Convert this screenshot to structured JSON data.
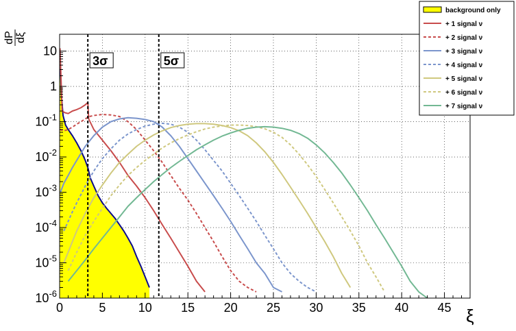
{
  "chart_data": {
    "type": "line",
    "title": "",
    "xlabel": "ξ",
    "ylabel_num": "dP",
    "ylabel_den": "dξ",
    "xlim": [
      0,
      48
    ],
    "ylim": [
      1e-06,
      30
    ],
    "yscale": "log",
    "grid": true,
    "legend_position": "top-right",
    "x_ticks": [
      0,
      5,
      10,
      15,
      20,
      25,
      30,
      35,
      40,
      45
    ],
    "y_ticks": [
      {
        "value": 1e-06,
        "base": "10",
        "exp": "-6"
      },
      {
        "value": 1e-05,
        "base": "10",
        "exp": "-5"
      },
      {
        "value": 0.0001,
        "base": "10",
        "exp": "-4"
      },
      {
        "value": 0.001,
        "base": "10",
        "exp": "-3"
      },
      {
        "value": 0.01,
        "base": "10",
        "exp": "-2"
      },
      {
        "value": 0.1,
        "base": "10",
        "exp": "-1"
      },
      {
        "value": 1,
        "base": "1",
        "exp": ""
      },
      {
        "value": 10,
        "base": "10",
        "exp": ""
      }
    ],
    "thresholds": [
      {
        "label": "3σ",
        "x": 3.3
      },
      {
        "label": "5σ",
        "x": 11.6
      }
    ],
    "series": [
      {
        "name": "background only",
        "color": "#ffff00",
        "style": "fill",
        "x": [
          0.05,
          0.2,
          0.4,
          0.7,
          1.0,
          1.5,
          2.0,
          2.5,
          3.0,
          3.3,
          3.6,
          4.0,
          4.5,
          5.0,
          5.5,
          6.0,
          6.5,
          7.0,
          7.5,
          8.0,
          8.5,
          9.0,
          9.5,
          10.0,
          10.5
        ],
        "y": [
          8,
          0.6,
          0.15,
          0.08,
          0.06,
          0.04,
          0.025,
          0.015,
          0.008,
          0.005,
          0.0025,
          0.0015,
          0.0008,
          0.0005,
          0.00035,
          0.00025,
          0.00018,
          0.00012,
          8e-05,
          5e-05,
          3e-05,
          1.5e-05,
          8e-06,
          4e-06,
          2e-06
        ]
      },
      {
        "name": "+ 1 signal ν",
        "color": "#c84b4b",
        "style": "solid",
        "x": [
          0.05,
          0.3,
          0.6,
          1.0,
          1.5,
          2.0,
          2.5,
          3.0,
          3.3,
          3.4,
          4.0,
          5.0,
          6.0,
          7.0,
          8.0,
          9.0,
          10.0,
          11.0,
          12.0,
          13.0,
          14.0,
          15.0,
          16.0,
          17.0
        ],
        "y": [
          12,
          0.2,
          0.18,
          0.17,
          0.2,
          0.22,
          0.25,
          0.3,
          0.35,
          0.12,
          0.06,
          0.03,
          0.015,
          0.007,
          0.003,
          0.0015,
          0.0007,
          0.0003,
          0.00012,
          5e-05,
          2e-05,
          8e-06,
          3e-06,
          1.5e-06
        ]
      },
      {
        "name": "+ 2 signal ν",
        "color": "#c84b4b",
        "style": "dashed",
        "x": [
          0.05,
          0.5,
          1,
          1.5,
          2,
          2.5,
          3,
          3.5,
          4,
          5,
          6,
          7,
          8,
          9,
          10,
          11,
          12,
          13,
          14,
          15,
          16,
          17,
          18,
          19,
          20,
          21,
          22,
          23
        ],
        "y": [
          0.06,
          0.055,
          0.06,
          0.07,
          0.085,
          0.1,
          0.12,
          0.14,
          0.15,
          0.16,
          0.155,
          0.14,
          0.1,
          0.06,
          0.03,
          0.015,
          0.007,
          0.003,
          0.0013,
          0.0006,
          0.00025,
          0.0001,
          4e-05,
          1.5e-05,
          6e-06,
          3e-06,
          2e-06,
          1.5e-06
        ]
      },
      {
        "name": "+ 3 signal ν",
        "color": "#7b95cc",
        "style": "solid",
        "x": [
          0.1,
          0.5,
          1,
          1.5,
          2,
          3,
          4,
          5,
          6,
          7,
          8,
          9,
          10,
          11,
          12,
          13,
          14,
          15,
          16,
          17,
          18,
          19,
          20,
          21,
          22,
          23,
          24,
          25,
          26
        ],
        "y": [
          0.001,
          0.0018,
          0.003,
          0.005,
          0.008,
          0.02,
          0.04,
          0.07,
          0.1,
          0.12,
          0.13,
          0.125,
          0.115,
          0.1,
          0.07,
          0.04,
          0.02,
          0.009,
          0.004,
          0.0018,
          0.0008,
          0.00035,
          0.00015,
          6e-05,
          2.5e-05,
          1e-05,
          5e-06,
          2e-06,
          1.5e-06
        ]
      },
      {
        "name": "+ 4 signal ν",
        "color": "#7b95cc",
        "style": "dashed",
        "x": [
          0.5,
          1,
          1.5,
          2,
          3,
          4,
          5,
          6,
          7,
          8,
          9,
          10,
          11,
          12,
          13,
          14,
          15,
          16,
          17,
          18,
          19,
          20,
          21,
          22,
          23,
          24,
          25,
          26,
          27,
          28,
          29,
          30
        ],
        "y": [
          8e-05,
          0.00015,
          0.00028,
          0.0005,
          0.0015,
          0.004,
          0.009,
          0.017,
          0.03,
          0.045,
          0.06,
          0.075,
          0.085,
          0.09,
          0.085,
          0.07,
          0.05,
          0.03,
          0.016,
          0.008,
          0.004,
          0.0018,
          0.0008,
          0.00035,
          0.00015,
          6e-05,
          2.5e-05,
          1e-05,
          5e-06,
          3e-06,
          2e-06,
          1.5e-06
        ]
      },
      {
        "name": "+ 5 signal ν",
        "color": "#cfc87e",
        "style": "solid",
        "x": [
          0.5,
          1,
          1.5,
          2,
          3,
          4,
          5,
          6,
          7,
          8,
          9,
          10,
          11,
          12,
          13,
          14,
          15,
          16,
          17,
          18,
          19,
          20,
          21,
          22,
          23,
          24,
          25,
          26,
          27,
          28,
          29,
          30,
          31,
          32,
          33,
          34
        ],
        "y": [
          1e-05,
          2e-05,
          4e-05,
          8e-05,
          0.00025,
          0.0007,
          0.0016,
          0.0035,
          0.007,
          0.012,
          0.02,
          0.03,
          0.042,
          0.055,
          0.068,
          0.078,
          0.085,
          0.088,
          0.088,
          0.085,
          0.078,
          0.068,
          0.055,
          0.04,
          0.025,
          0.014,
          0.007,
          0.0032,
          0.0014,
          0.0006,
          0.00025,
          0.0001,
          4e-05,
          1.5e-05,
          5e-06,
          2e-06
        ]
      },
      {
        "name": "+ 6 signal ν",
        "color": "#cfc87e",
        "style": "dashed",
        "x": [
          1,
          2,
          3,
          4,
          5,
          6,
          7,
          8,
          9,
          10,
          11,
          12,
          13,
          14,
          15,
          16,
          17,
          18,
          19,
          20,
          21,
          22,
          23,
          24,
          25,
          26,
          27,
          28,
          29,
          30,
          31,
          32,
          33,
          34,
          35,
          36,
          37,
          38
        ],
        "y": [
          6e-06,
          2e-05,
          6e-05,
          0.00015,
          0.00035,
          0.0008,
          0.0016,
          0.003,
          0.005,
          0.008,
          0.012,
          0.018,
          0.025,
          0.033,
          0.042,
          0.052,
          0.062,
          0.07,
          0.076,
          0.08,
          0.08,
          0.078,
          0.072,
          0.063,
          0.05,
          0.036,
          0.022,
          0.012,
          0.006,
          0.0028,
          0.0012,
          0.0005,
          0.0002,
          8e-05,
          3e-05,
          1e-05,
          4e-06,
          1.5e-06
        ]
      },
      {
        "name": "+ 7 signal ν",
        "color": "#72b893",
        "style": "solid",
        "x": [
          1,
          2,
          3,
          4,
          5,
          6,
          7,
          8,
          9,
          10,
          11,
          12,
          13,
          14,
          15,
          16,
          17,
          18,
          19,
          20,
          21,
          22,
          23,
          24,
          25,
          26,
          27,
          28,
          29,
          30,
          31,
          32,
          33,
          34,
          35,
          36,
          37,
          38,
          39,
          40,
          41,
          42,
          43
        ],
        "y": [
          3e-06,
          6e-06,
          1.2e-05,
          2.5e-05,
          5e-05,
          0.0001,
          0.0002,
          0.0004,
          0.0007,
          0.0012,
          0.002,
          0.0032,
          0.005,
          0.0075,
          0.011,
          0.016,
          0.022,
          0.03,
          0.039,
          0.048,
          0.057,
          0.065,
          0.07,
          0.072,
          0.07,
          0.065,
          0.057,
          0.046,
          0.034,
          0.022,
          0.013,
          0.007,
          0.0035,
          0.0016,
          0.0007,
          0.0003,
          0.00012,
          5e-05,
          2e-05,
          8e-06,
          3e-06,
          1.5e-06,
          1e-06
        ]
      }
    ]
  }
}
